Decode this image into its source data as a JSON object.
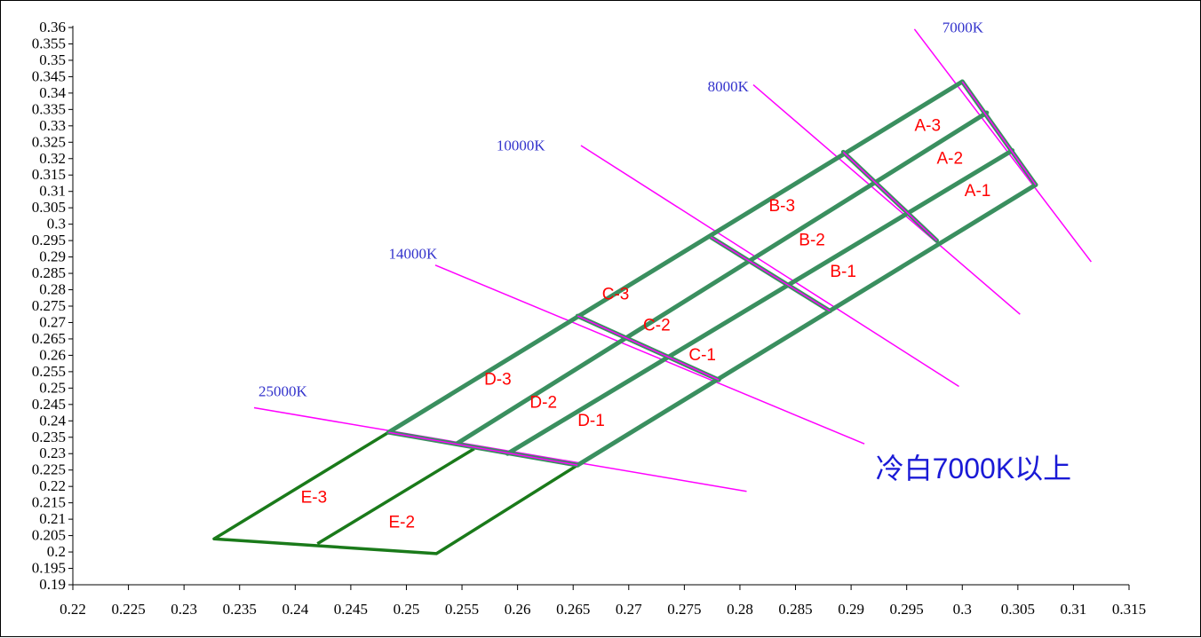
{
  "chart_data": {
    "type": "diagram",
    "title": "",
    "xlabel": "",
    "ylabel": "",
    "xlim": [
      0.22,
      0.315
    ],
    "ylim": [
      0.19,
      0.36
    ],
    "x_ticks": [
      "0.22",
      "0.225",
      "0.23",
      "0.235",
      "0.24",
      "0.245",
      "0.25",
      "0.255",
      "0.26",
      "0.265",
      "0.27",
      "0.275",
      "0.28",
      "0.285",
      "0.29",
      "0.295",
      "0.3",
      "0.305",
      "0.31",
      "0.315"
    ],
    "y_ticks": [
      "0.19",
      "0.195",
      "0.2",
      "0.205",
      "0.21",
      "0.215",
      "0.22",
      "0.225",
      "0.23",
      "0.235",
      "0.24",
      "0.245",
      "0.25",
      "0.255",
      "0.26",
      "0.265",
      "0.27",
      "0.275",
      "0.28",
      "0.285",
      "0.29",
      "0.295",
      "0.3",
      "0.305",
      "0.31",
      "0.315",
      "0.32",
      "0.325",
      "0.33",
      "0.335",
      "0.34",
      "0.345",
      "0.35",
      "0.355",
      "0.36"
    ],
    "colors": {
      "grid_lines": "#3a8f5f",
      "e_region": "#1a7a1a",
      "cct_lines": "#ff00ff",
      "cct_text": "#3333cc",
      "bin_text": "#ff0000",
      "note_text": "#1a1ad6"
    },
    "cct_lines": [
      {
        "label": "7000K",
        "label_at": [
          0.2982,
          0.3585
        ],
        "points": [
          [
            0.2957,
            0.3595
          ],
          [
            0.3116,
            0.2885
          ]
        ]
      },
      {
        "label": "8000K",
        "label_at": [
          0.2771,
          0.3405
        ],
        "points": [
          [
            0.2812,
            0.3425
          ],
          [
            0.3052,
            0.2725
          ]
        ]
      },
      {
        "label": "10000K",
        "label_at": [
          0.2581,
          0.3225
        ],
        "points": [
          [
            0.2657,
            0.324
          ],
          [
            0.2997,
            0.2505
          ]
        ]
      },
      {
        "label": "14000K",
        "label_at": [
          0.2484,
          0.2895
        ],
        "points": [
          [
            0.2526,
            0.2875
          ],
          [
            0.2912,
            0.233
          ]
        ]
      },
      {
        "label": "25000K",
        "label_at": [
          0.2367,
          0.2475
        ],
        "points": [
          [
            0.2363,
            0.244
          ],
          [
            0.2806,
            0.2185
          ]
        ]
      }
    ],
    "grid_boundaries": [
      {
        "name": "line-1",
        "points": [
          [
            0.2654,
            0.2265
          ],
          [
            0.3066,
            0.312
          ]
        ]
      },
      {
        "name": "line-2",
        "points": [
          [
            0.2591,
            0.23
          ],
          [
            0.3045,
            0.3225
          ]
        ]
      },
      {
        "name": "line-3",
        "points": [
          [
            0.2545,
            0.233
          ],
          [
            0.3022,
            0.334
          ]
        ]
      },
      {
        "name": "line-4",
        "points": [
          [
            0.2484,
            0.2365
          ],
          [
            0.3,
            0.3435
          ]
        ]
      },
      {
        "name": "cct-7000",
        "points": [
          [
            0.3,
            0.3435
          ],
          [
            0.3066,
            0.312
          ]
        ]
      },
      {
        "name": "cct-8000",
        "points": [
          [
            0.2893,
            0.322
          ],
          [
            0.2977,
            0.295
          ]
        ]
      },
      {
        "name": "cct-10000",
        "points": [
          [
            0.2774,
            0.296
          ],
          [
            0.2881,
            0.2735
          ]
        ]
      },
      {
        "name": "cct-14000",
        "points": [
          [
            0.2654,
            0.272
          ],
          [
            0.2781,
            0.2525
          ]
        ]
      },
      {
        "name": "cct-25000",
        "points": [
          [
            0.2484,
            0.2365
          ],
          [
            0.2654,
            0.2265
          ]
        ]
      }
    ],
    "e_region": [
      {
        "name": "e-outline",
        "points": [
          [
            0.2484,
            0.2365
          ],
          [
            0.2327,
            0.204
          ],
          [
            0.2527,
            0.1995
          ],
          [
            0.2654,
            0.2265
          ]
        ]
      },
      {
        "name": "e-divider",
        "points": [
          [
            0.2561,
            0.2315
          ],
          [
            0.242,
            0.2025
          ]
        ]
      }
    ],
    "bins": [
      {
        "label": "A-3",
        "at": [
          0.2957,
          0.3285
        ]
      },
      {
        "label": "A-2",
        "at": [
          0.2977,
          0.3185
        ]
      },
      {
        "label": "A-1",
        "at": [
          0.3002,
          0.3085
        ]
      },
      {
        "label": "B-3",
        "at": [
          0.2826,
          0.304
        ]
      },
      {
        "label": "B-2",
        "at": [
          0.2853,
          0.2935
        ]
      },
      {
        "label": "B-1",
        "at": [
          0.2881,
          0.284
        ]
      },
      {
        "label": "C-3",
        "at": [
          0.2676,
          0.277
        ]
      },
      {
        "label": "C-2",
        "at": [
          0.2713,
          0.2675
        ]
      },
      {
        "label": "C-1",
        "at": [
          0.2754,
          0.2585
        ]
      },
      {
        "label": "D-3",
        "at": [
          0.257,
          0.251
        ]
      },
      {
        "label": "D-2",
        "at": [
          0.2611,
          0.244
        ]
      },
      {
        "label": "D-1",
        "at": [
          0.2654,
          0.2385
        ]
      },
      {
        "label": "E-3",
        "at": [
          0.2405,
          0.215
        ]
      },
      {
        "label": "E-2",
        "at": [
          0.2484,
          0.2075
        ]
      }
    ],
    "note": {
      "text": "冷白7000K以上",
      "at": [
        0.2922,
        0.2225
      ]
    }
  }
}
